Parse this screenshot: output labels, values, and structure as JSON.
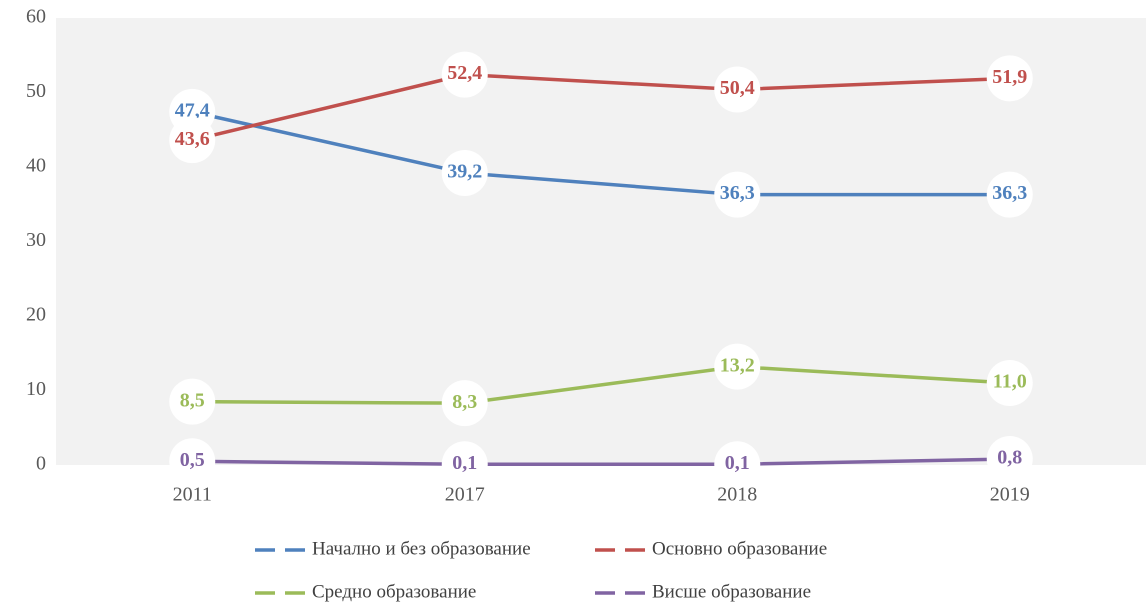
{
  "chart_data": {
    "type": "line",
    "categories": [
      "2011",
      "2017",
      "2018",
      "2019"
    ],
    "series": [
      {
        "name": "Начално и без образование",
        "color": "#4f81bd",
        "values": [
          47.4,
          39.2,
          36.3,
          36.3
        ],
        "value_labels": [
          "47,4",
          "39,2",
          "36,3",
          "36,3"
        ]
      },
      {
        "name": "Основно образование",
        "color": "#c0504d",
        "values": [
          43.6,
          52.4,
          50.4,
          51.9
        ],
        "value_labels": [
          "43,6",
          "52,4",
          "50,4",
          "51,9"
        ]
      },
      {
        "name": "Средно образование",
        "color": "#9bbb59",
        "values": [
          8.5,
          8.3,
          13.2,
          11.0
        ],
        "value_labels": [
          "8,5",
          "8,3",
          "13,2",
          "11,0"
        ]
      },
      {
        "name": "Висше образование",
        "color": "#8064a2",
        "values": [
          0.5,
          0.1,
          0.1,
          0.8
        ],
        "value_labels": [
          "0,5",
          "0,1",
          "0,1",
          "0,8"
        ]
      }
    ],
    "ylim": [
      0,
      60
    ],
    "yticks": [
      0,
      10,
      20,
      30,
      40,
      50,
      60
    ],
    "grid": false,
    "legend": "bottom"
  }
}
